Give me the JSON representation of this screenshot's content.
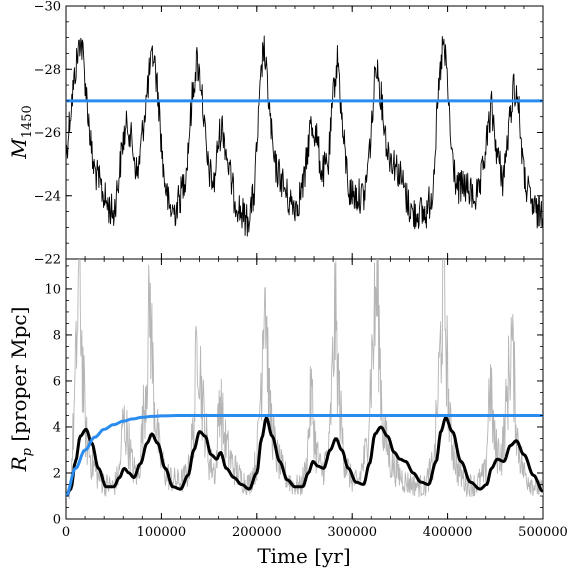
{
  "chart_data": [
    {
      "type": "line",
      "panel": "top",
      "ylabel_main": "M",
      "ylabel_sub": "1450",
      "xlim": [
        0,
        500000
      ],
      "ylim": [
        -22,
        -30
      ],
      "y_inverted": true,
      "yticks": [
        -22,
        -24,
        -26,
        -28,
        -30
      ],
      "ytick_labels": [
        "−22",
        "−24",
        "−26",
        "−28",
        "−30"
      ],
      "series": [
        {
          "color": "#000000",
          "style": "noisy",
          "x": [
            0,
            4000,
            10000,
            15000,
            18000,
            22000,
            28000,
            35000,
            42000,
            50000,
            55000,
            60000,
            65000,
            70000,
            75000,
            82000,
            88000,
            92000,
            97000,
            102000,
            108000,
            114000,
            120000,
            126000,
            132000,
            137000,
            142000,
            148000,
            155000,
            160000,
            164000,
            170000,
            176000,
            183000,
            190000,
            197000,
            203000,
            207000,
            212000,
            218000,
            226000,
            234000,
            242000,
            250000,
            256000,
            262000,
            268000,
            275000,
            281000,
            285000,
            290000,
            297000,
            305000,
            313000,
            320000,
            325000,
            330000,
            337000,
            345000,
            352000,
            358000,
            364000,
            370000,
            377000,
            384000,
            390000,
            395000,
            399000,
            404000,
            410000,
            418000,
            426000,
            433000,
            440000,
            446000,
            452000,
            458000,
            464000,
            469000,
            474000,
            480000,
            487000,
            494000,
            500000
          ],
          "y": [
            -25.2,
            -26.5,
            -28.0,
            -29.0,
            -28.4,
            -27.0,
            -25.0,
            -24.4,
            -23.8,
            -23.4,
            -24.5,
            -25.8,
            -26.3,
            -25.5,
            -24.6,
            -26.5,
            -28.0,
            -28.5,
            -27.0,
            -24.8,
            -23.6,
            -23.5,
            -24.0,
            -24.8,
            -27.0,
            -28.3,
            -27.5,
            -25.0,
            -24.3,
            -25.8,
            -26.2,
            -25.0,
            -24.0,
            -23.5,
            -23.2,
            -24.0,
            -27.0,
            -28.8,
            -27.2,
            -25.0,
            -24.5,
            -23.8,
            -23.7,
            -24.5,
            -26.2,
            -26.0,
            -24.7,
            -25.0,
            -27.5,
            -28.4,
            -26.0,
            -24.1,
            -24.0,
            -24.0,
            -26.0,
            -28.3,
            -27.2,
            -25.4,
            -25.0,
            -24.5,
            -23.8,
            -23.4,
            -23.5,
            -23.4,
            -24.1,
            -27.0,
            -28.8,
            -28.0,
            -25.4,
            -24.2,
            -24.3,
            -24.0,
            -24.0,
            -25.5,
            -26.8,
            -25.3,
            -24.5,
            -26.0,
            -27.5,
            -27.0,
            -24.6,
            -23.8,
            -23.4,
            -23.6
          ]
        },
        {
          "color": "#2b8cf0",
          "style": "line",
          "x": [
            0,
            500000
          ],
          "y": [
            -27.0,
            -27.0
          ]
        }
      ]
    },
    {
      "type": "line",
      "panel": "bottom",
      "ylabel": "R_p [proper Mpc]",
      "ylabel_main": "R",
      "ylabel_sub": "p",
      "ylabel_rest": " [proper Mpc]",
      "xlabel": "Time [yr]",
      "xlim": [
        0,
        500000
      ],
      "ylim": [
        0,
        11.3
      ],
      "yticks": [
        0,
        2,
        4,
        6,
        8,
        10
      ],
      "ytick_labels": [
        "0",
        "2",
        "4",
        "6",
        "8",
        "10"
      ],
      "xticks": [
        0,
        100000,
        200000,
        300000,
        400000,
        500000
      ],
      "xtick_labels": [
        "0",
        "100000",
        "200000",
        "300000",
        "400000",
        "500000"
      ],
      "series": [
        {
          "color": "#b5b5b5",
          "style": "noisy",
          "x": [
            0,
            5000,
            10000,
            14000,
            17000,
            21000,
            27000,
            34000,
            42000,
            50000,
            56000,
            60000,
            65000,
            70000,
            76000,
            84000,
            88000,
            92000,
            98000,
            104000,
            112000,
            120000,
            128000,
            134000,
            138000,
            143000,
            150000,
            157000,
            161000,
            166000,
            173000,
            182000,
            192000,
            200000,
            205000,
            208000,
            213000,
            220000,
            228000,
            238000,
            246000,
            252000,
            257000,
            262000,
            268000,
            276000,
            282000,
            286000,
            291000,
            298000,
            306000,
            315000,
            320000,
            326000,
            332000,
            340000,
            348000,
            356000,
            366000,
            376000,
            386000,
            392000,
            396000,
            402000,
            410000,
            420000,
            430000,
            440000,
            444000,
            450000,
            457000,
            463000,
            467000,
            473000,
            480000,
            490000,
            500000
          ],
          "y": [
            0.8,
            1.5,
            6.0,
            11.3,
            7.0,
            3.5,
            2.5,
            1.8,
            1.5,
            1.4,
            2.0,
            4.3,
            3.5,
            2.2,
            1.8,
            6.0,
            9.5,
            5.5,
            2.8,
            2.0,
            1.7,
            1.6,
            2.0,
            4.0,
            8.5,
            5.0,
            2.5,
            2.0,
            5.5,
            3.5,
            2.5,
            1.8,
            1.5,
            2.5,
            6.5,
            11.3,
            5.0,
            2.8,
            2.0,
            1.5,
            1.4,
            2.2,
            5.5,
            3.0,
            2.0,
            3.0,
            9.0,
            5.5,
            2.8,
            1.8,
            1.5,
            3.0,
            6.5,
            10.3,
            4.0,
            2.5,
            2.0,
            1.6,
            1.5,
            1.4,
            2.5,
            7.0,
            10.5,
            4.0,
            2.2,
            1.5,
            1.5,
            2.0,
            6.0,
            3.0,
            2.8,
            5.5,
            8.0,
            3.5,
            2.0,
            1.5,
            1.2
          ]
        },
        {
          "color": "#000000",
          "style": "smooth",
          "x": [
            0,
            5000,
            10000,
            15000,
            21000,
            27000,
            34000,
            42000,
            50000,
            56000,
            61000,
            66000,
            71000,
            78000,
            85000,
            90000,
            96000,
            104000,
            112000,
            120000,
            128000,
            134000,
            140000,
            146000,
            152000,
            158000,
            162000,
            168000,
            176000,
            184000,
            192000,
            200000,
            205000,
            210000,
            216000,
            224000,
            232000,
            240000,
            248000,
            254000,
            259000,
            264000,
            270000,
            277000,
            283000,
            289000,
            296000,
            304000,
            312000,
            318000,
            324000,
            330000,
            337000,
            344000,
            350000,
            356000,
            364000,
            372000,
            380000,
            388000,
            393000,
            398000,
            405000,
            414000,
            424000,
            434000,
            441000,
            446000,
            452000,
            459000,
            466000,
            472000,
            480000,
            490000,
            500000
          ],
          "y": [
            1.0,
            1.3,
            2.5,
            3.6,
            3.9,
            3.3,
            2.2,
            1.4,
            1.4,
            1.8,
            2.2,
            2.0,
            1.8,
            2.4,
            3.3,
            3.7,
            3.3,
            2.2,
            1.4,
            1.3,
            1.9,
            3.0,
            3.8,
            3.6,
            2.8,
            2.6,
            2.9,
            2.2,
            1.8,
            1.5,
            1.3,
            2.0,
            3.5,
            4.4,
            3.6,
            2.5,
            1.7,
            1.4,
            1.4,
            2.0,
            2.5,
            2.3,
            2.2,
            3.0,
            3.5,
            3.0,
            2.2,
            1.6,
            1.5,
            2.4,
            3.7,
            4.0,
            3.6,
            2.9,
            2.6,
            2.5,
            2.0,
            1.6,
            1.5,
            2.5,
            3.8,
            4.4,
            3.8,
            2.5,
            1.6,
            1.3,
            1.5,
            2.2,
            2.6,
            2.5,
            3.2,
            3.4,
            2.8,
            1.9,
            1.2
          ]
        },
        {
          "color": "#2b8cf0",
          "style": "smooth",
          "x": [
            0,
            10000,
            20000,
            30000,
            40000,
            50000,
            60000,
            70000,
            80000,
            90000,
            100000,
            120000,
            150000,
            200000,
            300000,
            400000,
            500000
          ],
          "y": [
            1.0,
            2.2,
            3.0,
            3.55,
            3.9,
            4.1,
            4.25,
            4.35,
            4.42,
            4.46,
            4.48,
            4.5,
            4.5,
            4.5,
            4.5,
            4.5,
            4.5
          ]
        }
      ]
    }
  ]
}
